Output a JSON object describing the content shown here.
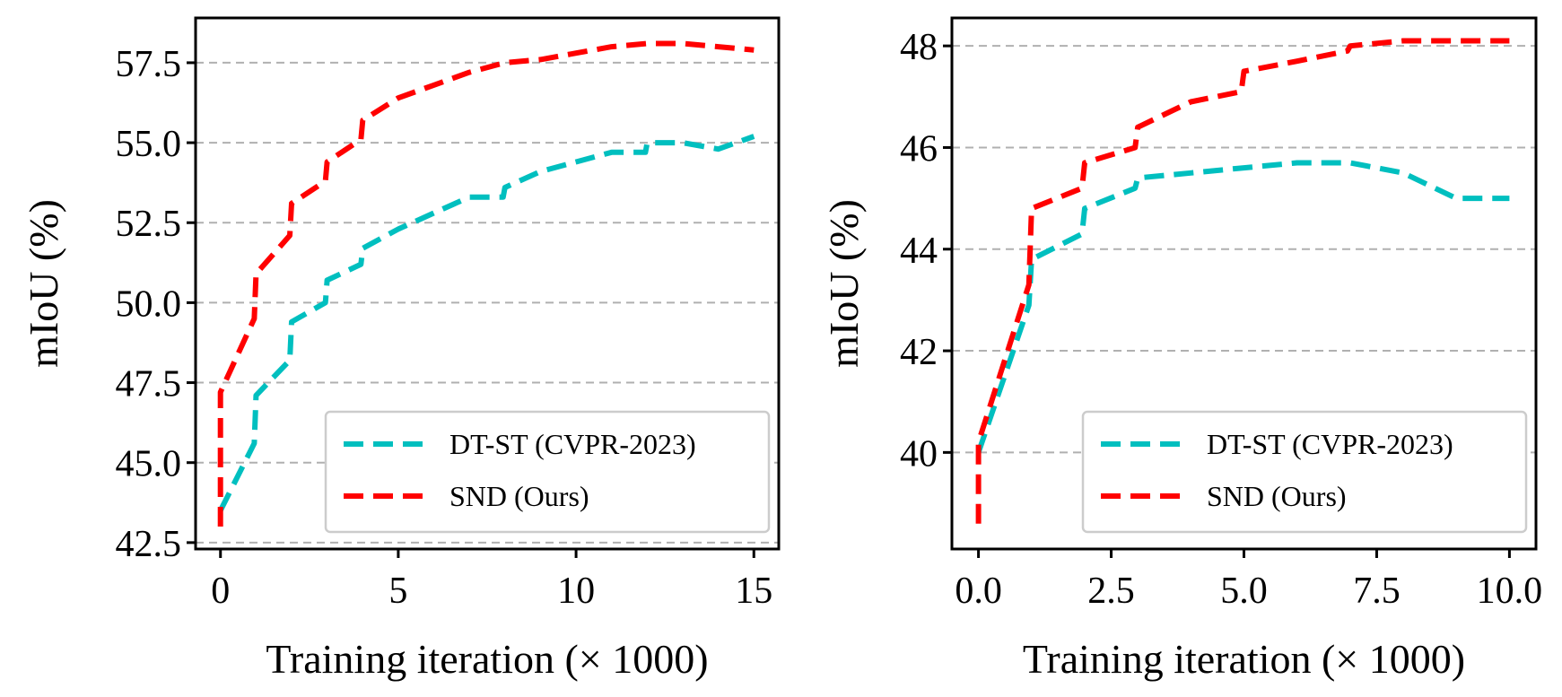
{
  "chart_data": [
    {
      "type": "line",
      "xlabel": "Training iteration (× 1000)",
      "ylabel": "mIoU (%)",
      "xlim": [
        -0.7,
        15.7
      ],
      "ylim": [
        42.3,
        58.9
      ],
      "xticks": [
        0,
        5,
        10,
        15
      ],
      "xtick_labels": [
        "0",
        "5",
        "10",
        "15"
      ],
      "yticks": [
        42.5,
        45.0,
        47.5,
        50.0,
        52.5,
        55.0,
        57.5
      ],
      "ytick_labels": [
        "42.5",
        "45.0",
        "47.5",
        "50.0",
        "52.5",
        "55.0",
        "57.5"
      ],
      "grid": "horizontal dashed",
      "legend_position": "lower-right",
      "series": [
        {
          "name": "DT-ST (CVPR-2023)",
          "color": "#00bfbf",
          "x": [
            0,
            0.95,
            1,
            1.95,
            2,
            2.95,
            3,
            3.95,
            4,
            5,
            6,
            7,
            7.95,
            8,
            9,
            10,
            11,
            11.95,
            12,
            13,
            14,
            15
          ],
          "y": [
            43.5,
            45.6,
            47.1,
            48.2,
            49.4,
            50.0,
            50.7,
            51.2,
            51.7,
            52.3,
            52.8,
            53.3,
            53.3,
            53.6,
            54.1,
            54.4,
            54.7,
            54.7,
            55.0,
            55.0,
            54.8,
            55.2
          ]
        },
        {
          "name": "SND (Ours)",
          "color": "#ff0000",
          "x": [
            0,
            0,
            0.95,
            1,
            1.95,
            2,
            2.95,
            3,
            3.95,
            4,
            5,
            6,
            7,
            8,
            9,
            10,
            11,
            12,
            13,
            14,
            15
          ],
          "y": [
            43.0,
            47.2,
            49.5,
            50.9,
            52.1,
            53.1,
            53.8,
            54.4,
            55.1,
            55.7,
            56.4,
            56.8,
            57.2,
            57.5,
            57.6,
            57.8,
            58.0,
            58.1,
            58.1,
            58.0,
            57.9
          ]
        }
      ]
    },
    {
      "type": "line",
      "xlabel": "Training iteration (× 1000)",
      "ylabel": "mIoU (%)",
      "xlim": [
        -0.5,
        10.5
      ],
      "ylim": [
        38.1,
        48.55
      ],
      "xticks": [
        0,
        2.5,
        5,
        7.5,
        10
      ],
      "xtick_labels": [
        "0.0",
        "2.5",
        "5.0",
        "7.5",
        "10.0"
      ],
      "yticks": [
        40,
        42,
        44,
        46,
        48
      ],
      "ytick_labels": [
        "40",
        "42",
        "44",
        "46",
        "48"
      ],
      "grid": "horizontal dashed",
      "legend_position": "lower-right",
      "series": [
        {
          "name": "DT-ST (CVPR-2023)",
          "color": "#00bfbf",
          "x": [
            0,
            0.95,
            1,
            1.95,
            2,
            2.95,
            3,
            4,
            5,
            6,
            7,
            8,
            9,
            10
          ],
          "y": [
            40.0,
            42.9,
            43.8,
            44.3,
            44.8,
            45.2,
            45.4,
            45.5,
            45.6,
            45.7,
            45.7,
            45.5,
            45.0,
            45.0
          ]
        },
        {
          "name": "SND (Ours)",
          "color": "#ff0000",
          "x": [
            0,
            0,
            0.95,
            1,
            1.95,
            2,
            2.95,
            3,
            4,
            4.95,
            5,
            6,
            6.95,
            7,
            8,
            9,
            10
          ],
          "y": [
            38.6,
            40.2,
            43.3,
            44.8,
            45.2,
            45.7,
            46.0,
            46.4,
            46.9,
            47.1,
            47.5,
            47.7,
            47.9,
            48.0,
            48.1,
            48.1,
            48.1
          ]
        }
      ]
    }
  ]
}
